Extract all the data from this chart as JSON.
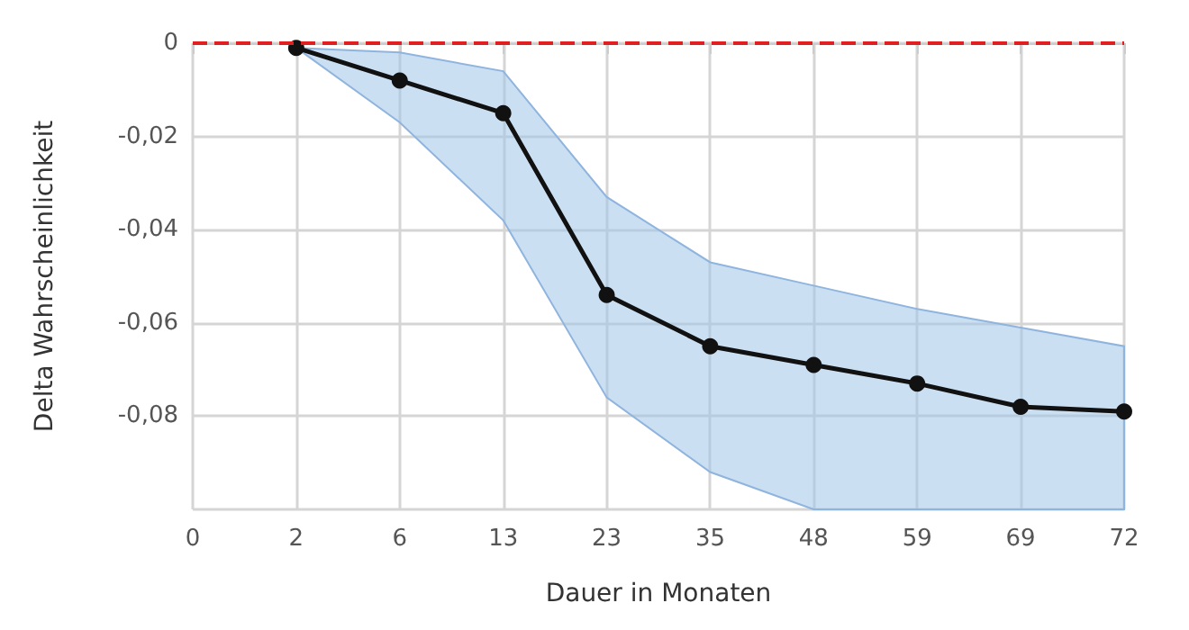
{
  "chart_data": {
    "type": "line",
    "xlabel": "Dauer in Monaten",
    "ylabel": "Delta Wahrscheinlichkeit",
    "categories": [
      "0",
      "2",
      "6",
      "13",
      "23",
      "35",
      "48",
      "59",
      "69",
      "72"
    ],
    "series": [
      {
        "color": "#111111",
        "values": [
          null,
          -0.001,
          -0.008,
          -0.015,
          -0.054,
          -0.065,
          -0.069,
          -0.073,
          -0.078,
          -0.079
        ],
        "lower": [
          null,
          -0.001,
          -0.017,
          -0.038,
          -0.076,
          -0.092,
          -0.1,
          -0.1,
          -0.1,
          -0.1
        ],
        "upper": [
          null,
          -0.001,
          -0.002,
          -0.006,
          -0.033,
          -0.047,
          -0.052,
          -0.057,
          -0.061,
          -0.065
        ]
      }
    ],
    "ylim": [
      -0.1,
      0
    ],
    "yticks": [
      {
        "value": -0.1,
        "label": null
      },
      {
        "value": -0.08,
        "label": "-0,08"
      },
      {
        "value": -0.06,
        "label": "-0,06"
      },
      {
        "value": -0.04,
        "label": "-0,04"
      },
      {
        "value": -0.02,
        "label": "-0,02"
      },
      0
    ],
    "ref_lines": [
      {
        "axis": "y",
        "value": 0,
        "color": "#e02020",
        "line_style": "dashed"
      }
    ],
    "grid": true,
    "marker": "circle",
    "line_style": "solid"
  }
}
